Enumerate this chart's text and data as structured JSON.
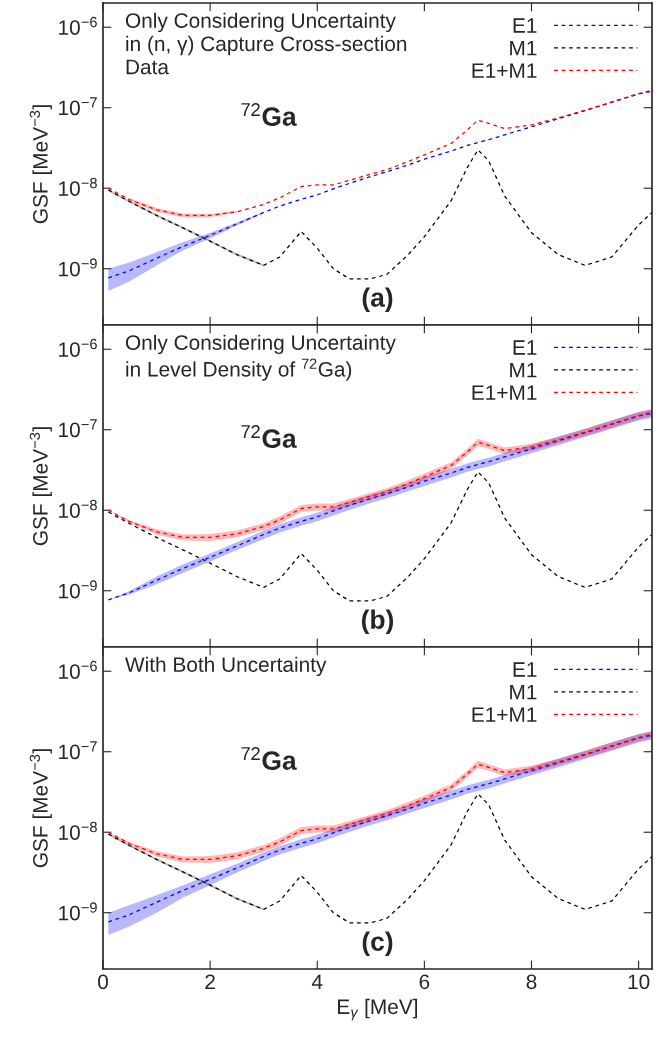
{
  "chart_data": [
    {
      "type": "line",
      "log": "y",
      "line_style": "dashed",
      "legend": "top right",
      "grid": false,
      "tick_labels": "y",
      "ylabel": "GSF [MeV$^{−3}$]",
      "annotations": [
        "Only Considering Uncertainty\nin (n, γ) Capture Cross-section\nData",
        "$^{72}$Ga",
        "(a)"
      ],
      "xlim": [
        0,
        10.25
      ],
      "xticks": [
        0,
        2,
        4,
        6,
        8,
        10
      ],
      "ylim": [
        2e-10,
        2e-06
      ],
      "yticks": [
        {
          "value": 1e-09,
          "label": "10$^{−9}$"
        },
        {
          "value": 1e-08,
          "label": "10$^{−8}$"
        },
        {
          "value": 1e-07,
          "label": "10$^{−7}$"
        },
        {
          "value": 1e-06,
          "label": "10$^{−6}$"
        }
      ],
      "x": [
        0.1,
        0.5,
        1,
        1.5,
        2,
        2.5,
        3,
        3.3,
        3.7,
        4,
        4.3,
        4.6,
        5,
        5.3,
        5.7,
        6,
        6.5,
        6.8,
        7,
        7.2,
        7.5,
        8,
        8.5,
        9,
        9.5,
        10,
        10.25
      ],
      "series": [
        {
          "name": "E1",
          "color": "#0000ff",
          "values": [
            7.7e-10,
            9.5e-10,
            1.35e-09,
            1.9e-09,
            2.6e-09,
            3.6e-09,
            5e-09,
            6e-09,
            7.3e-09,
            8.3e-09,
            9.8e-09,
            1.15e-08,
            1.4e-08,
            1.6e-08,
            1.95e-08,
            2.3e-08,
            2.9e-08,
            3.4e-08,
            3.7e-08,
            4e-08,
            4.6e-08,
            5.8e-08,
            7.3e-08,
            9.2e-08,
            1.17e-07,
            1.48e-07,
            1.6e-07
          ],
          "lower": [
            5.3e-10,
            7e-10,
            1.1e-09,
            1.7e-09,
            2.4e-09,
            3.45e-09,
            4.9e-09,
            null,
            null,
            null,
            null,
            null,
            null,
            null,
            null,
            null,
            null,
            null,
            null,
            null,
            null,
            null,
            null,
            null,
            null,
            null,
            null
          ],
          "upper": [
            1e-09,
            1.2e-09,
            1.6e-09,
            2.15e-09,
            2.8e-09,
            3.75e-09,
            5.1e-09,
            null,
            null,
            null,
            null,
            null,
            null,
            null,
            null,
            null,
            null,
            null,
            null,
            null,
            null,
            null,
            null,
            null,
            null,
            null,
            null
          ]
        },
        {
          "name": "M1",
          "color": "#000000",
          "values": [
            9.5e-09,
            6.8e-09,
            4.6e-09,
            3.2e-09,
            2.2e-09,
            1.5e-09,
            1.1e-09,
            1.4e-09,
            2.9e-09,
            1.8e-09,
            1e-09,
            7.5e-10,
            7.5e-10,
            8.5e-10,
            1.5e-09,
            2.5e-09,
            7e-09,
            1.8e-08,
            3e-08,
            2.2e-08,
            8e-09,
            2.8e-09,
            1.5e-09,
            1.1e-09,
            1.4e-09,
            3.5e-09,
            5e-09
          ],
          "lower": [
            9.2e-09,
            6.6e-09,
            4.45e-09,
            3.1e-09,
            2.13e-09,
            1.45e-09,
            1.07e-09,
            null,
            null,
            null,
            null,
            null,
            null,
            null,
            null,
            null,
            null,
            null,
            null,
            null,
            null,
            null,
            null,
            null,
            null,
            null,
            null
          ],
          "upper": [
            9.8e-09,
            7e-09,
            4.75e-09,
            3.3e-09,
            2.27e-09,
            1.55e-09,
            1.13e-09,
            null,
            null,
            null,
            null,
            null,
            null,
            null,
            null,
            null,
            null,
            null,
            null,
            null,
            null,
            null,
            null,
            null,
            null,
            null,
            null
          ]
        },
        {
          "name": "E1+M1",
          "color": "#ff0000",
          "values": [
            1e-08,
            7.2e-09,
            5.4e-09,
            4.6e-09,
            4.6e-09,
            5.1e-09,
            6.3e-09,
            7.6e-09,
            1.05e-08,
            1.1e-08,
            1.1e-08,
            1.25e-08,
            1.5e-08,
            1.7e-08,
            2.15e-08,
            2.6e-08,
            3.6e-08,
            5.3e-08,
            7e-08,
            6.4e-08,
            5.5e-08,
            6.1e-08,
            7.5e-08,
            9.3e-08,
            1.18e-07,
            1.5e-07,
            1.65e-07
          ],
          "lower": [
            null,
            6.9e-09,
            5.1e-09,
            4.35e-09,
            4.4e-09,
            4.95e-09,
            null,
            null,
            null,
            null,
            null,
            null,
            null,
            null,
            null,
            null,
            null,
            null,
            null,
            null,
            null,
            null,
            null,
            null,
            null,
            null,
            null
          ],
          "upper": [
            null,
            7.5e-09,
            5.7e-09,
            4.85e-09,
            4.8e-09,
            5.25e-09,
            null,
            null,
            null,
            null,
            null,
            null,
            null,
            null,
            null,
            null,
            null,
            null,
            null,
            null,
            null,
            null,
            null,
            null,
            null,
            null,
            null
          ]
        }
      ]
    },
    {
      "type": "line",
      "log": "y",
      "line_style": "dashed",
      "legend": "top right",
      "grid": false,
      "tick_labels": "y",
      "ylabel": "GSF [MeV$^{−3}$]",
      "annotations": [
        "Only Considering Uncertainty\nin Level Density of $^{72}$Ga)",
        "$^{72}$Ga",
        "(b)"
      ],
      "xlim": [
        0,
        10.25
      ],
      "xticks": [
        0,
        2,
        4,
        6,
        8,
        10
      ],
      "ylim": [
        2e-10,
        2e-06
      ],
      "yticks": [
        {
          "value": 1e-09,
          "label": "10$^{−9}$"
        },
        {
          "value": 1e-08,
          "label": "10$^{−8}$"
        },
        {
          "value": 1e-07,
          "label": "10$^{−7}$"
        },
        {
          "value": 1e-06,
          "label": "10$^{−6}$"
        }
      ],
      "x": [
        0.1,
        0.5,
        1,
        1.5,
        2,
        2.5,
        3,
        3.3,
        3.7,
        4,
        4.3,
        4.6,
        5,
        5.3,
        5.7,
        6,
        6.5,
        6.8,
        7,
        7.2,
        7.5,
        8,
        8.5,
        9,
        9.5,
        10,
        10.25
      ],
      "series": [
        {
          "name": "E1",
          "color": "#0000ff",
          "values": [
            7.7e-10,
            9.5e-10,
            1.35e-09,
            1.9e-09,
            2.6e-09,
            3.6e-09,
            5e-09,
            6e-09,
            7.3e-09,
            8.3e-09,
            9.8e-09,
            1.15e-08,
            1.4e-08,
            1.6e-08,
            1.95e-08,
            2.3e-08,
            2.9e-08,
            3.4e-08,
            3.7e-08,
            4e-08,
            4.6e-08,
            5.8e-08,
            7.3e-08,
            9.2e-08,
            1.17e-07,
            1.48e-07,
            1.6e-07
          ],
          "lower": [
            7.7e-10,
            9e-10,
            1.2e-09,
            1.67e-09,
            2.3e-09,
            3.2e-09,
            4.4e-09,
            5.3e-09,
            6.4e-09,
            7.3e-09,
            8.6e-09,
            1.01e-08,
            1.23e-08,
            1.41e-08,
            1.72e-08,
            2e-08,
            2.55e-08,
            3e-08,
            3.25e-08,
            3.5e-08,
            4.05e-08,
            5.1e-08,
            6.4e-08,
            8.1e-08,
            1.03e-07,
            1.3e-07,
            1.41e-07
          ],
          "upper": [
            7.7e-10,
            1e-09,
            1.5e-09,
            2.13e-09,
            2.9e-09,
            4e-09,
            5.6e-09,
            6.7e-09,
            8.2e-09,
            9.3e-09,
            1.1e-08,
            1.29e-08,
            1.57e-08,
            1.79e-08,
            2.18e-08,
            2.6e-08,
            3.25e-08,
            3.8e-08,
            4.15e-08,
            4.5e-08,
            5.15e-08,
            6.5e-08,
            8.2e-08,
            1.03e-07,
            1.31e-07,
            1.66e-07,
            1.79e-07
          ]
        },
        {
          "name": "M1",
          "color": "#000000",
          "values": [
            9.5e-09,
            6.8e-09,
            4.6e-09,
            3.2e-09,
            2.2e-09,
            1.5e-09,
            1.1e-09,
            1.4e-09,
            2.9e-09,
            1.8e-09,
            1e-09,
            7.5e-10,
            7.5e-10,
            8.5e-10,
            1.5e-09,
            2.5e-09,
            7e-09,
            1.8e-08,
            3e-08,
            2.2e-08,
            8e-09,
            2.8e-09,
            1.5e-09,
            1.1e-09,
            1.4e-09,
            3.5e-09,
            5e-09
          ]
        },
        {
          "name": "E1+M1",
          "color": "#ff0000",
          "values": [
            1e-08,
            7.2e-09,
            5.4e-09,
            4.6e-09,
            4.6e-09,
            5.1e-09,
            6.3e-09,
            7.6e-09,
            1.05e-08,
            1.1e-08,
            1.1e-08,
            1.25e-08,
            1.5e-08,
            1.7e-08,
            2.15e-08,
            2.6e-08,
            3.6e-08,
            5.3e-08,
            7e-08,
            6.4e-08,
            5.5e-08,
            6.1e-08,
            7.5e-08,
            9.3e-08,
            1.18e-07,
            1.5e-07,
            1.65e-07
          ],
          "lower": [
            1e-08,
            6.9e-09,
            5e-09,
            4.2e-09,
            4.15e-09,
            4.6e-09,
            5.7e-09,
            6.8e-09,
            9.5e-09,
            9.9e-09,
            9.9e-09,
            1.12e-08,
            1.35e-08,
            1.53e-08,
            1.94e-08,
            2.35e-08,
            3.25e-08,
            4.8e-08,
            6.3e-08,
            5.8e-08,
            5e-08,
            5.5e-08,
            6.8e-08,
            8.4e-08,
            1.06e-07,
            1.35e-07,
            1.49e-07
          ],
          "upper": [
            1e-08,
            7.5e-09,
            5.8e-09,
            5e-09,
            5.05e-09,
            5.6e-09,
            6.9e-09,
            8.4e-09,
            1.16e-08,
            1.21e-08,
            1.21e-08,
            1.38e-08,
            1.65e-08,
            1.87e-08,
            2.37e-08,
            2.85e-08,
            3.95e-08,
            5.8e-08,
            7.7e-08,
            7e-08,
            6e-08,
            6.7e-08,
            8.2e-08,
            1.02e-07,
            1.3e-07,
            1.65e-07,
            1.81e-07
          ]
        }
      ]
    },
    {
      "type": "line",
      "log": "y",
      "line_style": "dashed",
      "legend": "top right",
      "grid": false,
      "xlabel": "E$_{γ}$ [MeV]",
      "ylabel": "GSF [MeV$^{−3}$]",
      "annotations": [
        "With Both Uncertainty",
        "$^{72}$Ga",
        "(c)"
      ],
      "xlim": [
        0,
        10.25
      ],
      "xticks": [
        0,
        2,
        4,
        6,
        8,
        10
      ],
      "ylim": [
        2e-10,
        2e-06
      ],
      "yticks": [
        {
          "value": 1e-09,
          "label": "10$^{−9}$"
        },
        {
          "value": 1e-08,
          "label": "10$^{−8}$"
        },
        {
          "value": 1e-07,
          "label": "10$^{−7}$"
        },
        {
          "value": 1e-06,
          "label": "10$^{−6}$"
        }
      ],
      "x": [
        0.1,
        0.5,
        1,
        1.5,
        2,
        2.5,
        3,
        3.3,
        3.7,
        4,
        4.3,
        4.6,
        5,
        5.3,
        5.7,
        6,
        6.5,
        6.8,
        7,
        7.2,
        7.5,
        8,
        8.5,
        9,
        9.5,
        10,
        10.25
      ],
      "series": [
        {
          "name": "E1",
          "color": "#0000ff",
          "values": [
            7.7e-10,
            9.5e-10,
            1.35e-09,
            1.9e-09,
            2.6e-09,
            3.6e-09,
            5e-09,
            6e-09,
            7.3e-09,
            8.3e-09,
            9.8e-09,
            1.15e-08,
            1.4e-08,
            1.6e-08,
            1.95e-08,
            2.3e-08,
            2.9e-08,
            3.4e-08,
            3.7e-08,
            4e-08,
            4.6e-08,
            5.8e-08,
            7.3e-08,
            9.2e-08,
            1.17e-07,
            1.48e-07,
            1.6e-07
          ],
          "lower": [
            5.3e-10,
            6.8e-10,
            1e-09,
            1.55e-09,
            2.2e-09,
            3.15e-09,
            4.4e-09,
            5.3e-09,
            6.4e-09,
            7.3e-09,
            8.6e-09,
            1.01e-08,
            1.23e-08,
            1.41e-08,
            1.72e-08,
            2e-08,
            2.55e-08,
            3e-08,
            3.25e-08,
            3.5e-08,
            4.05e-08,
            5.1e-08,
            6.4e-08,
            8.1e-08,
            1.03e-07,
            1.3e-07,
            1.41e-07
          ],
          "upper": [
            1e-09,
            1.25e-09,
            1.65e-09,
            2.2e-09,
            3e-09,
            4.05e-09,
            5.6e-09,
            6.7e-09,
            8.2e-09,
            9.3e-09,
            1.1e-08,
            1.29e-08,
            1.57e-08,
            1.79e-08,
            2.18e-08,
            2.6e-08,
            3.25e-08,
            3.8e-08,
            4.15e-08,
            4.5e-08,
            5.15e-08,
            6.5e-08,
            8.2e-08,
            1.03e-07,
            1.31e-07,
            1.66e-07,
            1.79e-07
          ]
        },
        {
          "name": "M1",
          "color": "#000000",
          "values": [
            9.5e-09,
            6.8e-09,
            4.6e-09,
            3.2e-09,
            2.2e-09,
            1.5e-09,
            1.1e-09,
            1.4e-09,
            2.9e-09,
            1.8e-09,
            1e-09,
            7.5e-10,
            7.5e-10,
            8.5e-10,
            1.5e-09,
            2.5e-09,
            7e-09,
            1.8e-08,
            3e-08,
            2.2e-08,
            8e-09,
            2.8e-09,
            1.5e-09,
            1.1e-09,
            1.4e-09,
            3.5e-09,
            5e-09
          ],
          "lower": [
            9.2e-09,
            6.6e-09,
            4.45e-09,
            3.1e-09,
            2.13e-09,
            1.45e-09,
            1.07e-09,
            null,
            null,
            null,
            null,
            null,
            null,
            null,
            null,
            null,
            null,
            null,
            null,
            null,
            null,
            null,
            null,
            null,
            null,
            null,
            null
          ],
          "upper": [
            9.8e-09,
            7e-09,
            4.75e-09,
            3.3e-09,
            2.27e-09,
            1.55e-09,
            1.13e-09,
            null,
            null,
            null,
            null,
            null,
            null,
            null,
            null,
            null,
            null,
            null,
            null,
            null,
            null,
            null,
            null,
            null,
            null,
            null,
            null
          ]
        },
        {
          "name": "E1+M1",
          "color": "#ff0000",
          "values": [
            1e-08,
            7.2e-09,
            5.4e-09,
            4.6e-09,
            4.6e-09,
            5.1e-09,
            6.3e-09,
            7.6e-09,
            1.05e-08,
            1.1e-08,
            1.1e-08,
            1.25e-08,
            1.5e-08,
            1.7e-08,
            2.15e-08,
            2.6e-08,
            3.6e-08,
            5.3e-08,
            7e-08,
            6.4e-08,
            5.5e-08,
            6.1e-08,
            7.5e-08,
            9.3e-08,
            1.18e-07,
            1.5e-07,
            1.65e-07
          ],
          "lower": [
            1e-08,
            6.9e-09,
            5e-09,
            4.2e-09,
            4.15e-09,
            4.6e-09,
            5.7e-09,
            6.8e-09,
            9.5e-09,
            9.9e-09,
            9.9e-09,
            1.12e-08,
            1.35e-08,
            1.53e-08,
            1.94e-08,
            2.35e-08,
            3.25e-08,
            4.8e-08,
            6.3e-08,
            5.8e-08,
            5e-08,
            5.5e-08,
            6.8e-08,
            8.4e-08,
            1.06e-07,
            1.35e-07,
            1.49e-07
          ],
          "upper": [
            1e-08,
            7.5e-09,
            5.8e-09,
            5e-09,
            5.05e-09,
            5.6e-09,
            6.9e-09,
            8.4e-09,
            1.16e-08,
            1.21e-08,
            1.21e-08,
            1.38e-08,
            1.65e-08,
            1.87e-08,
            2.37e-08,
            2.85e-08,
            3.95e-08,
            5.8e-08,
            7.7e-08,
            7e-08,
            6e-08,
            6.7e-08,
            8.2e-08,
            1.02e-07,
            1.3e-07,
            1.65e-07,
            1.81e-07
          ]
        }
      ]
    }
  ]
}
